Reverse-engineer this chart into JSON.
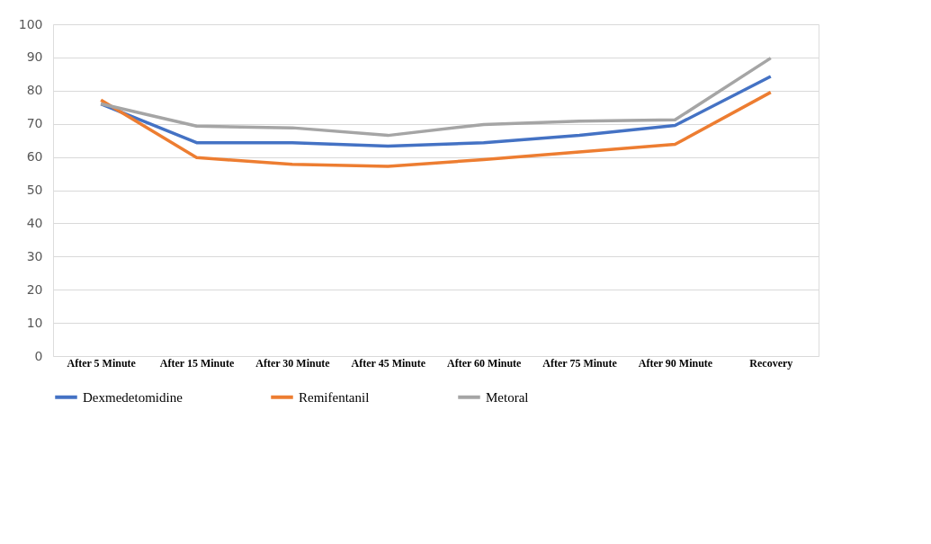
{
  "chart_data": {
    "type": "line",
    "categories": [
      "After 5 Minute",
      "After 15 Minute",
      "After 30 Minute",
      "After 45 Minute",
      "After 60 Minute",
      "After 75 Minute",
      "After 90 Minute",
      "Recovery"
    ],
    "series": [
      {
        "name": "Dexmedetomidine",
        "color": "#4472c4",
        "values": [
          76,
          64.3,
          64.3,
          63.3,
          64.3,
          66.5,
          69.5,
          84.3
        ]
      },
      {
        "name": "Remifentanil",
        "color": "#ed7d31",
        "values": [
          77.2,
          59.8,
          57.8,
          57.2,
          59.2,
          61.5,
          63.8,
          79.5
        ]
      },
      {
        "name": "Metoral",
        "color": "#a5a5a5",
        "values": [
          76,
          69.3,
          68.8,
          66.5,
          69.8,
          70.8,
          71.2,
          89.8
        ]
      }
    ],
    "ylim": [
      0,
      100
    ],
    "yticks": [
      0,
      10,
      20,
      30,
      40,
      50,
      60,
      70,
      80,
      90,
      100
    ],
    "grid": "y",
    "legend": "bottom",
    "marker": "none",
    "line_style": "solid"
  }
}
